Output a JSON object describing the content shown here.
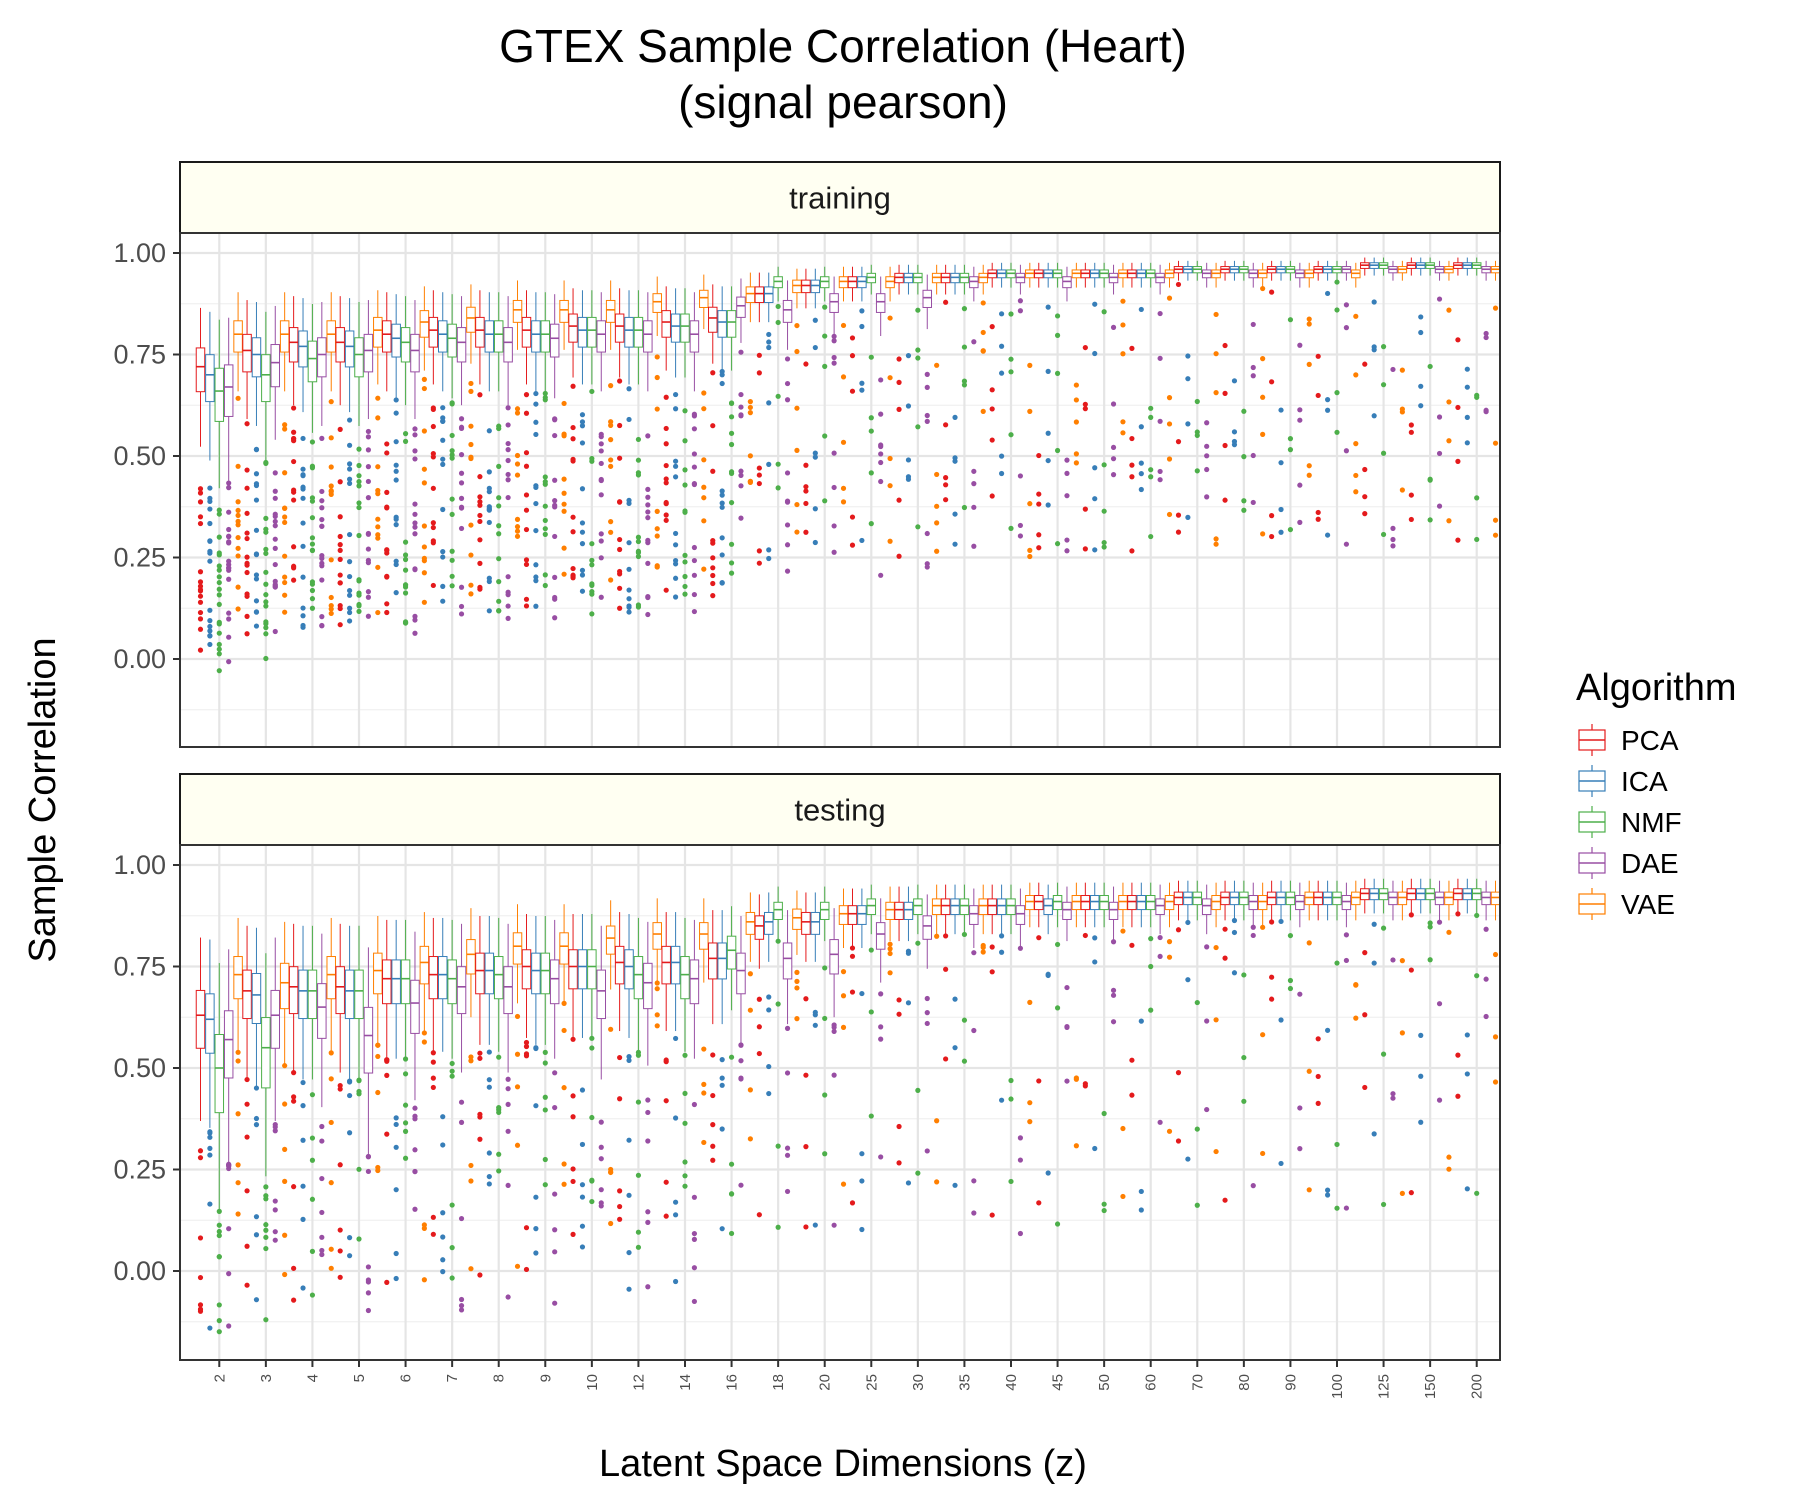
{
  "chart_data": {
    "type": "boxplot",
    "title": "GTEX Sample Correlation (Heart)",
    "subtitle": "(signal pearson)",
    "xlabel": "Latent Space Dimensions (z)",
    "ylabel": "Sample Correlation",
    "ylim": [
      -0.2,
      1.05
    ],
    "yticks": [
      "0.00",
      "0.25",
      "0.50",
      "0.75",
      "1.00"
    ],
    "grid": true,
    "legend_title": "Algorithm",
    "legend_position": "right",
    "categories": [
      "2",
      "3",
      "4",
      "5",
      "6",
      "7",
      "8",
      "9",
      "10",
      "12",
      "14",
      "16",
      "18",
      "20",
      "25",
      "30",
      "35",
      "40",
      "45",
      "50",
      "60",
      "70",
      "80",
      "90",
      "100",
      "125",
      "150",
      "200"
    ],
    "series": [
      {
        "name": "PCA",
        "color": "#e41a1c"
      },
      {
        "name": "ICA",
        "color": "#377eb8"
      },
      {
        "name": "NMF",
        "color": "#4daf4a"
      },
      {
        "name": "DAE",
        "color": "#984ea3"
      },
      {
        "name": "VAE",
        "color": "#ff7f00"
      }
    ],
    "panels": [
      {
        "name": "training",
        "median": {
          "PCA": [
            0.72,
            0.76,
            0.78,
            0.78,
            0.8,
            0.81,
            0.81,
            0.81,
            0.82,
            0.82,
            0.83,
            0.84,
            0.9,
            0.92,
            0.93,
            0.94,
            0.94,
            0.95,
            0.95,
            0.95,
            0.95,
            0.96,
            0.96,
            0.96,
            0.96,
            0.97,
            0.97,
            0.97
          ],
          "ICA": [
            0.7,
            0.75,
            0.77,
            0.77,
            0.79,
            0.8,
            0.8,
            0.8,
            0.81,
            0.81,
            0.82,
            0.83,
            0.9,
            0.92,
            0.93,
            0.94,
            0.94,
            0.95,
            0.95,
            0.95,
            0.95,
            0.96,
            0.96,
            0.96,
            0.96,
            0.97,
            0.97,
            0.97
          ],
          "NMF": [
            0.66,
            0.7,
            0.74,
            0.75,
            0.78,
            0.79,
            0.8,
            0.8,
            0.81,
            0.81,
            0.82,
            0.83,
            0.93,
            0.93,
            0.94,
            0.94,
            0.94,
            0.95,
            0.95,
            0.95,
            0.95,
            0.96,
            0.96,
            0.96,
            0.96,
            0.97,
            0.97,
            0.97
          ],
          "DAE": [
            0.67,
            0.73,
            0.75,
            0.76,
            0.76,
            0.78,
            0.78,
            0.79,
            0.8,
            0.8,
            0.8,
            0.87,
            0.86,
            0.88,
            0.88,
            0.89,
            0.93,
            0.94,
            0.93,
            0.94,
            0.94,
            0.95,
            0.95,
            0.95,
            0.96,
            0.96,
            0.96,
            0.96
          ],
          "VAE": [
            0.8,
            0.8,
            0.8,
            0.81,
            0.83,
            0.84,
            0.86,
            0.86,
            0.86,
            0.88,
            0.89,
            0.9,
            0.92,
            0.93,
            0.93,
            0.94,
            0.94,
            0.95,
            0.95,
            0.95,
            0.95,
            0.95,
            0.95,
            0.95,
            0.95,
            0.96,
            0.96,
            0.96
          ]
        }
      },
      {
        "name": "testing",
        "median": {
          "PCA": [
            0.63,
            0.69,
            0.7,
            0.7,
            0.72,
            0.73,
            0.74,
            0.75,
            0.75,
            0.76,
            0.76,
            0.77,
            0.85,
            0.86,
            0.88,
            0.89,
            0.9,
            0.9,
            0.91,
            0.91,
            0.91,
            0.92,
            0.92,
            0.92,
            0.92,
            0.93,
            0.93,
            0.93
          ],
          "ICA": [
            0.62,
            0.68,
            0.69,
            0.69,
            0.72,
            0.73,
            0.74,
            0.74,
            0.75,
            0.75,
            0.76,
            0.77,
            0.86,
            0.86,
            0.88,
            0.89,
            0.9,
            0.9,
            0.9,
            0.91,
            0.91,
            0.92,
            0.92,
            0.92,
            0.92,
            0.93,
            0.93,
            0.93
          ],
          "NMF": [
            0.5,
            0.55,
            0.69,
            0.69,
            0.72,
            0.72,
            0.73,
            0.74,
            0.75,
            0.73,
            0.73,
            0.79,
            0.89,
            0.89,
            0.9,
            0.9,
            0.9,
            0.9,
            0.91,
            0.91,
            0.91,
            0.92,
            0.92,
            0.92,
            0.92,
            0.93,
            0.93,
            0.93
          ],
          "DAE": [
            0.57,
            0.63,
            0.65,
            0.58,
            0.66,
            0.7,
            0.7,
            0.72,
            0.69,
            0.71,
            0.72,
            0.74,
            0.77,
            0.78,
            0.83,
            0.85,
            0.88,
            0.88,
            0.89,
            0.89,
            0.9,
            0.9,
            0.91,
            0.91,
            0.91,
            0.92,
            0.92,
            0.92
          ],
          "VAE": [
            0.73,
            0.71,
            0.73,
            0.74,
            0.76,
            0.78,
            0.8,
            0.8,
            0.82,
            0.83,
            0.83,
            0.86,
            0.87,
            0.88,
            0.89,
            0.9,
            0.9,
            0.91,
            0.91,
            0.91,
            0.91,
            0.91,
            0.91,
            0.92,
            0.92,
            0.92,
            0.92,
            0.92
          ]
        }
      }
    ]
  }
}
